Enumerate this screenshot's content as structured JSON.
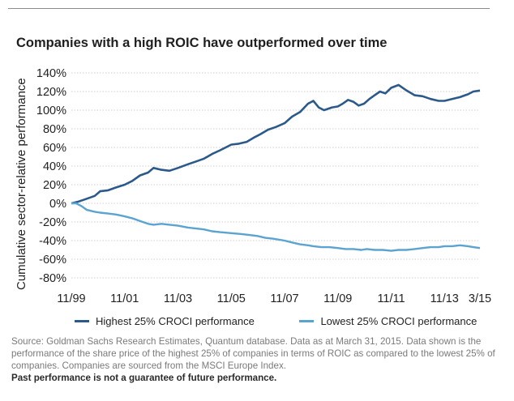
{
  "chart_data": {
    "type": "line",
    "title": "Companies with a high ROIC have outperformed over time",
    "ylabel": "Cumulative sector-relative performance",
    "xlabel": "",
    "ylim": [
      -80,
      140
    ],
    "yticks": [
      "140%",
      "120%",
      "100%",
      "80%",
      "60%",
      "40%",
      "20%",
      "0%",
      "-20%",
      "-40%",
      "-60%",
      "-80%"
    ],
    "ytick_values": [
      140,
      120,
      100,
      80,
      60,
      40,
      20,
      0,
      -20,
      -40,
      -60,
      -80
    ],
    "xlim": [
      1999.92,
      2015.25
    ],
    "xticks": [
      "11/99",
      "11/01",
      "11/03",
      "11/05",
      "11/07",
      "11/09",
      "11/11",
      "11/13",
      "3/15"
    ],
    "xtick_values": [
      1999.92,
      2001.92,
      2003.92,
      2005.92,
      2007.92,
      2009.92,
      2011.92,
      2013.92,
      2015.25
    ],
    "grid": "horizontal",
    "legend_position": "bottom",
    "series": [
      {
        "name": "Highest 25% CROCI performance",
        "color": "#2b5a8a",
        "x": [
          1999.92,
          2000.2,
          2000.5,
          2000.8,
          2001.0,
          2001.3,
          2001.6,
          2001.92,
          2002.2,
          2002.5,
          2002.8,
          2003.0,
          2003.3,
          2003.6,
          2003.92,
          2004.3,
          2004.6,
          2004.9,
          2005.2,
          2005.5,
          2005.92,
          2006.2,
          2006.5,
          2006.8,
          2007.0,
          2007.3,
          2007.6,
          2007.92,
          2008.2,
          2008.5,
          2008.8,
          2009.0,
          2009.2,
          2009.4,
          2009.7,
          2009.92,
          2010.1,
          2010.3,
          2010.5,
          2010.7,
          2010.9,
          2011.1,
          2011.3,
          2011.5,
          2011.7,
          2011.92,
          2012.2,
          2012.5,
          2012.8,
          2013.1,
          2013.4,
          2013.7,
          2013.92,
          2014.2,
          2014.5,
          2014.8,
          2015.0,
          2015.25
        ],
        "y": [
          0,
          2,
          5,
          8,
          13,
          14,
          17,
          20,
          24,
          30,
          33,
          38,
          36,
          35,
          38,
          42,
          45,
          48,
          53,
          57,
          63,
          64,
          66,
          71,
          74,
          79,
          82,
          86,
          93,
          98,
          107,
          110,
          103,
          100,
          103,
          104,
          107,
          111,
          109,
          105,
          107,
          112,
          116,
          120,
          118,
          124,
          127,
          121,
          116,
          115,
          112,
          110,
          110,
          112,
          114,
          117,
          120,
          121
        ]
      },
      {
        "name": "Lowest 25% CROCI performance",
        "color": "#5ba3d0",
        "x": [
          1999.92,
          2000.1,
          2000.3,
          2000.5,
          2000.8,
          2001.0,
          2001.3,
          2001.6,
          2001.92,
          2002.2,
          2002.5,
          2002.8,
          2003.0,
          2003.3,
          2003.6,
          2003.92,
          2004.3,
          2004.6,
          2004.9,
          2005.2,
          2005.5,
          2005.92,
          2006.3,
          2006.6,
          2006.9,
          2007.2,
          2007.5,
          2007.92,
          2008.2,
          2008.5,
          2008.8,
          2009.0,
          2009.3,
          2009.6,
          2009.92,
          2010.2,
          2010.5,
          2010.8,
          2011.0,
          2011.3,
          2011.6,
          2011.92,
          2012.2,
          2012.5,
          2012.8,
          2013.1,
          2013.4,
          2013.7,
          2013.92,
          2014.2,
          2014.5,
          2014.8,
          2015.0,
          2015.25
        ],
        "y": [
          0,
          0,
          -3,
          -7,
          -9,
          -10,
          -11,
          -12,
          -14,
          -16,
          -19,
          -22,
          -23,
          -22,
          -23,
          -24,
          -26,
          -27,
          -28,
          -30,
          -31,
          -32,
          -33,
          -34,
          -35,
          -37,
          -38,
          -40,
          -42,
          -44,
          -45,
          -46,
          -47,
          -47,
          -48,
          -49,
          -49,
          -50,
          -49,
          -50,
          -50,
          -51,
          -50,
          -50,
          -49,
          -48,
          -47,
          -47,
          -46,
          -46,
          -45,
          -46,
          -47,
          -48
        ]
      }
    ]
  },
  "source": {
    "text": "Source: Goldman Sachs Research Estimates, Quantum database. Data as at March 31, 2015. Data shown is the performance of the share price of the highest 25% of companies in terms of ROIC as compared to the lowest 25% of companies. Companies are sourced from the MSCI Europe Index.",
    "disclaimer": "Past performance is not a guarantee of future performance."
  }
}
